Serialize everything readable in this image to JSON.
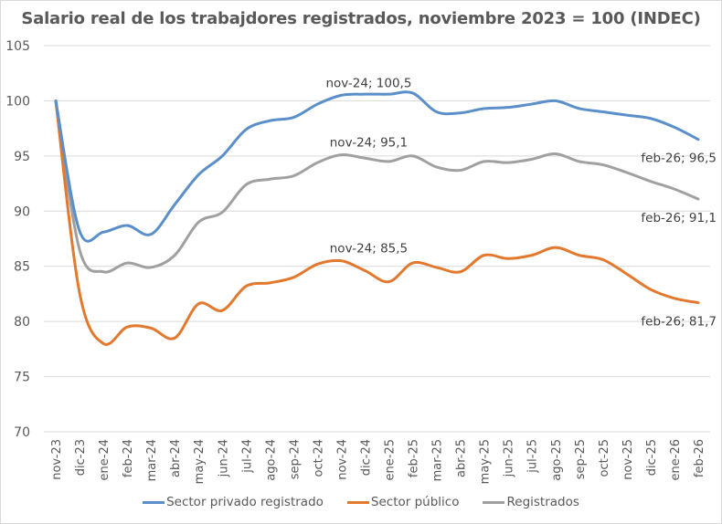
{
  "chart_data": {
    "type": "line",
    "title": "Salario real de los trabajdores registrados, noviembre 2023 = 100 (INDEC)",
    "xlabel": "",
    "ylabel": "",
    "ylim": [
      70,
      105
    ],
    "yticks": [
      "70",
      "75",
      "80",
      "85",
      "90",
      "95",
      "100",
      "105"
    ],
    "grid": true,
    "legend_position": "bottom",
    "categories": [
      "nov-23",
      "dic-23",
      "ene-24",
      "feb-24",
      "mar-24",
      "abr-24",
      "may-24",
      "jun-24",
      "jul-24",
      "ago-24",
      "sep-24",
      "oct-24",
      "nov-24",
      "dic-24",
      "ene-25",
      "feb-25",
      "mar-25",
      "abr-25",
      "may-25",
      "jun-25",
      "jul-25",
      "ago-25",
      "sep-25",
      "oct-25",
      "nov-25",
      "dic-25",
      "ene-26",
      "feb-26"
    ],
    "series": [
      {
        "name": "Sector privado registrado",
        "color": "#5B8FC9",
        "values": [
          100,
          88.2,
          88.1,
          88.7,
          87.9,
          90.6,
          93.3,
          95.0,
          97.4,
          98.2,
          98.5,
          99.7,
          100.5,
          100.6,
          100.6,
          100.7,
          99.0,
          98.9,
          99.3,
          99.4,
          99.7,
          100.0,
          99.3,
          99.0,
          98.7,
          98.4,
          97.6,
          96.5
        ]
      },
      {
        "name": "Sector público",
        "color": "#E2792F",
        "values": [
          100,
          82.6,
          78.0,
          79.5,
          79.4,
          78.5,
          81.6,
          81.0,
          83.2,
          83.5,
          84.0,
          85.2,
          85.5,
          84.6,
          83.6,
          85.3,
          84.9,
          84.5,
          86.0,
          85.7,
          86.0,
          86.7,
          86.0,
          85.6,
          84.3,
          82.9,
          82.1,
          81.7
        ]
      },
      {
        "name": "Registrados",
        "color": "#A0A0A0",
        "values": [
          100,
          86.5,
          84.5,
          85.3,
          84.9,
          86.0,
          89.0,
          89.9,
          92.4,
          92.9,
          93.2,
          94.4,
          95.1,
          94.8,
          94.5,
          95.0,
          94.0,
          93.7,
          94.5,
          94.4,
          94.7,
          95.2,
          94.5,
          94.2,
          93.5,
          92.7,
          92.0,
          91.1
        ]
      }
    ],
    "annotations": [
      {
        "series": 0,
        "category": "nov-24",
        "text": "nov-24; 100,5"
      },
      {
        "series": 0,
        "category": "feb-26",
        "text": "feb-26; 96,5"
      },
      {
        "series": 1,
        "category": "nov-24",
        "text": "nov-24; 85,5"
      },
      {
        "series": 1,
        "category": "feb-26",
        "text": "feb-26; 81,7"
      },
      {
        "series": 2,
        "category": "nov-24",
        "text": "nov-24; 95,1"
      },
      {
        "series": 2,
        "category": "feb-26",
        "text": "feb-26; 91,1"
      }
    ]
  }
}
